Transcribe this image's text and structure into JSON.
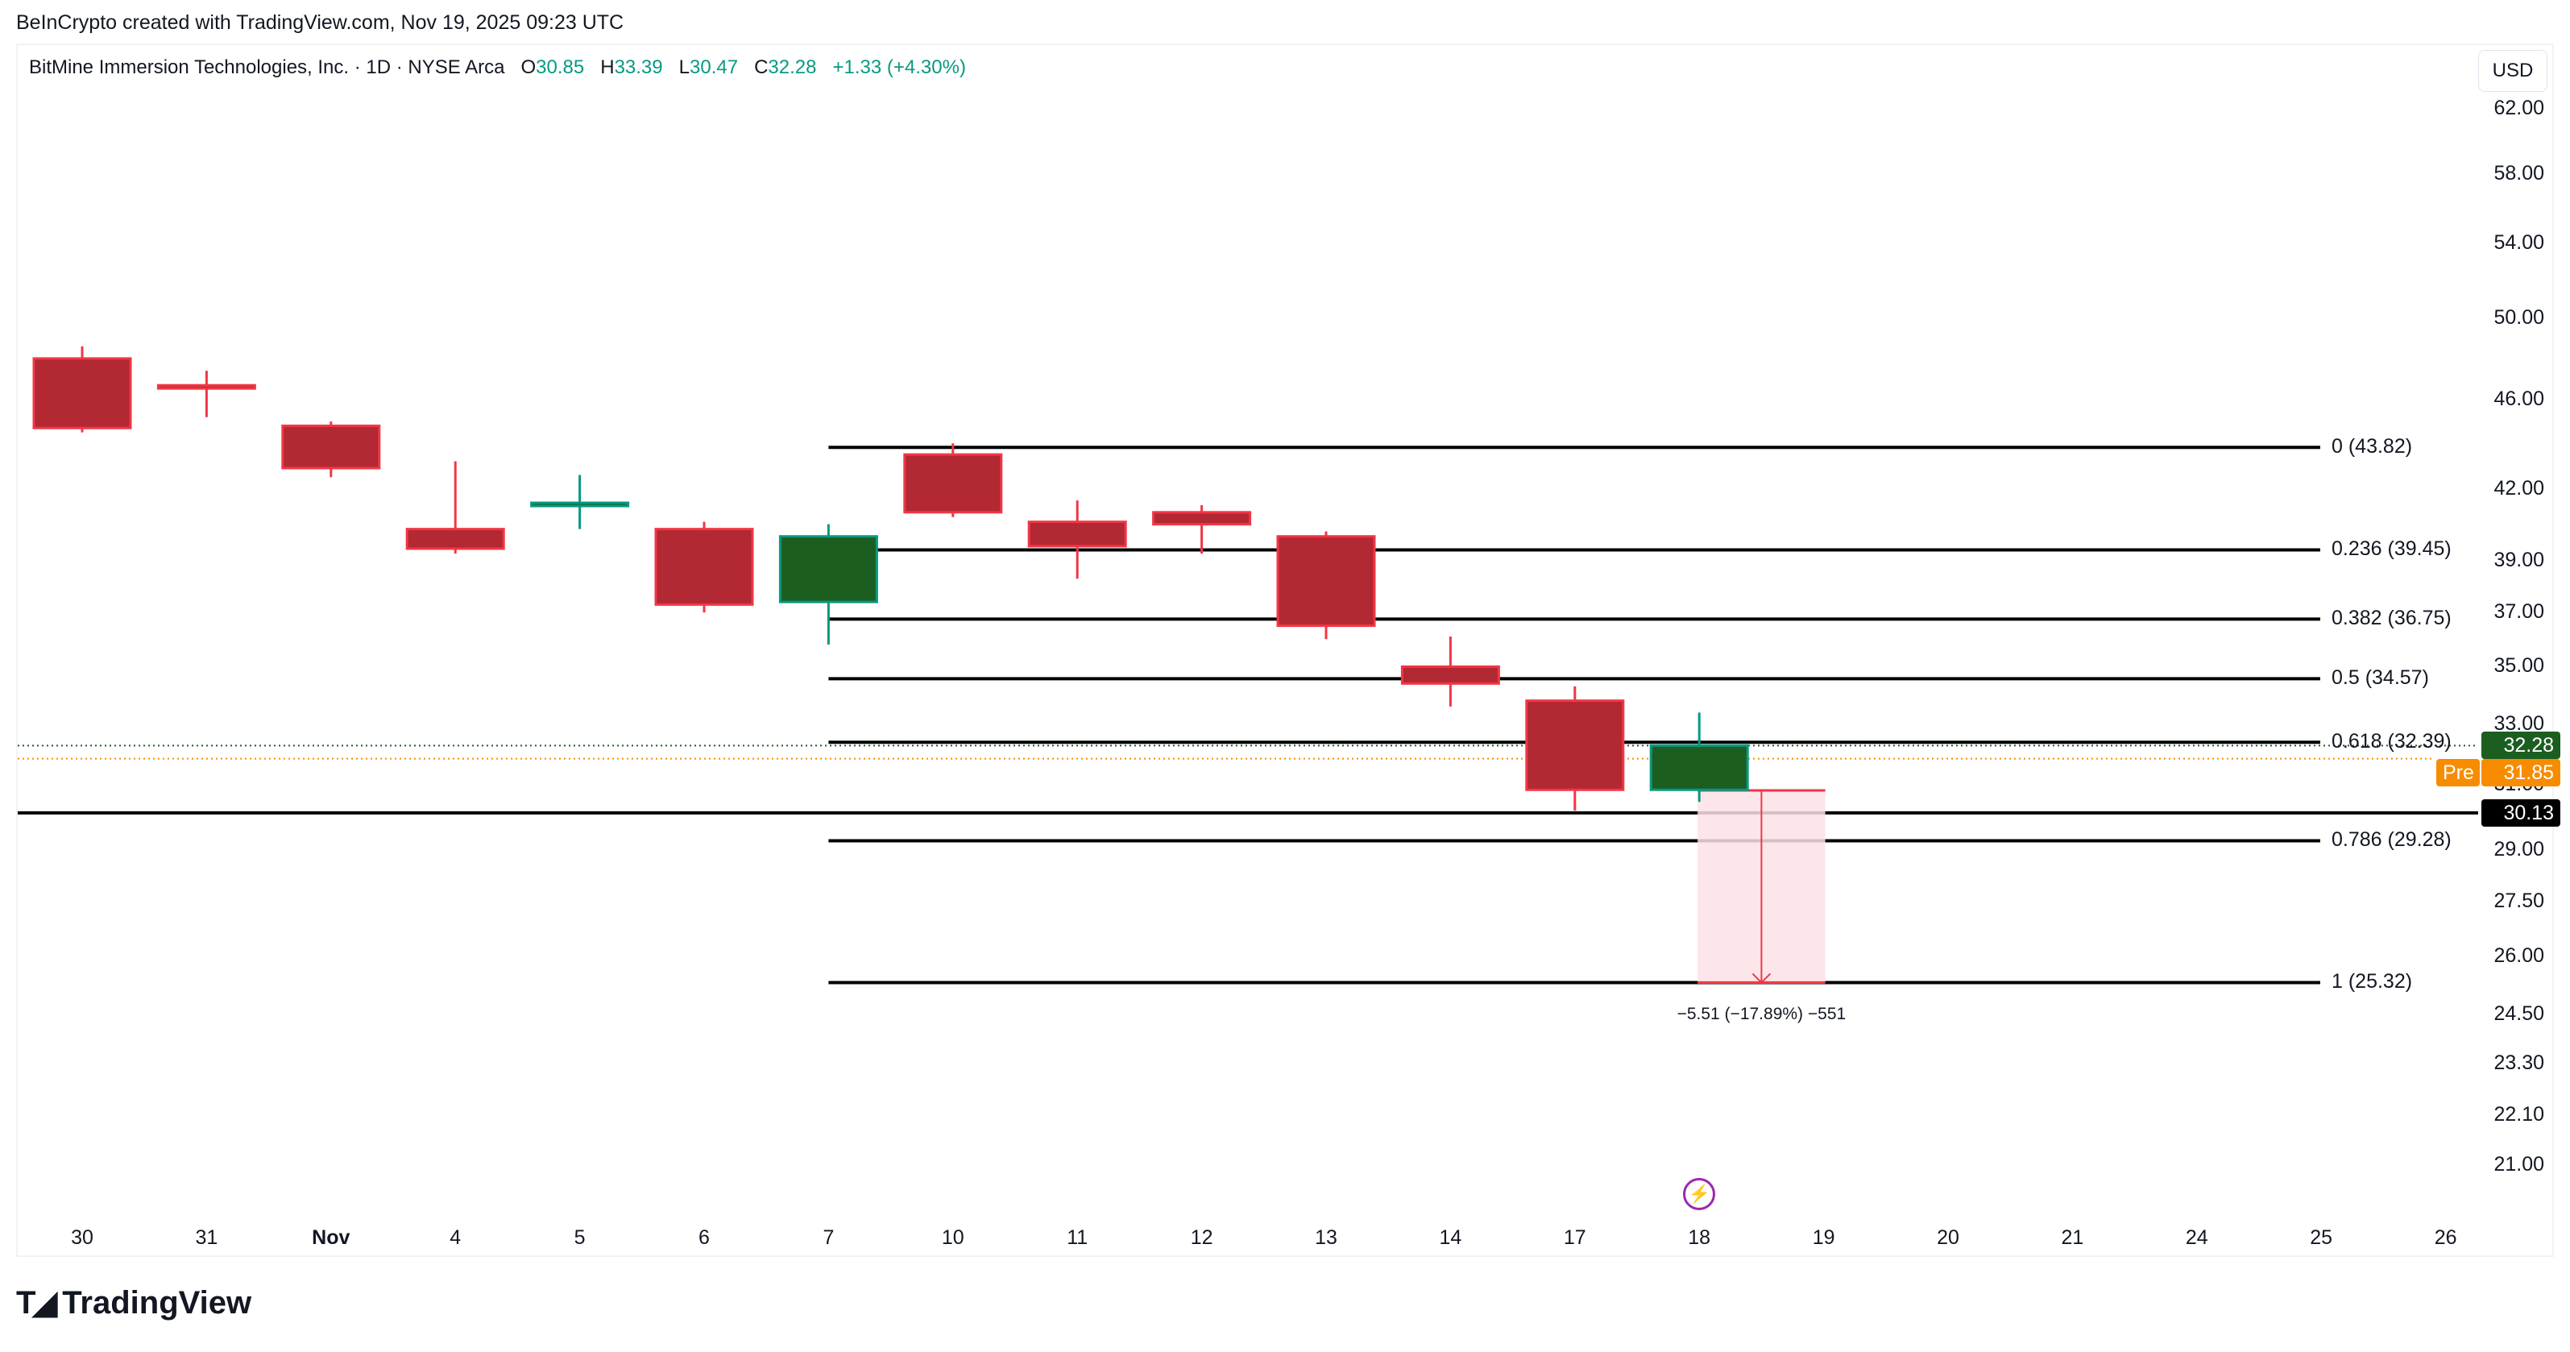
{
  "attribution": "BeInCrypto created with TradingView.com, Nov 19, 2025 09:23 UTC",
  "legend": {
    "symbol": "BitMine Immersion Technologies, Inc. · 1D · NYSE Arca",
    "o_label": "O",
    "o_value": "30.85",
    "h_label": "H",
    "h_value": "33.39",
    "l_label": "L",
    "l_value": "30.47",
    "c_label": "C",
    "c_value": "32.28",
    "change": "+1.33 (+4.30%)"
  },
  "currency": "USD",
  "colors": {
    "up_body": "#1b5e20",
    "up_border": "#089981",
    "down_body": "#b22833",
    "down_border": "#f23645",
    "fib_line": "#000000",
    "last_price": "#1b5e20",
    "premarket": "#f78c00",
    "hline": "#000000",
    "measure_fill": "#fde2e5",
    "measure_line": "#f23645",
    "event": "#9c27b0"
  },
  "price_axis": [
    "62.00",
    "58.00",
    "54.00",
    "50.00",
    "46.00",
    "42.00",
    "39.00",
    "37.00",
    "35.00",
    "33.00",
    "31.00",
    "29.00",
    "27.50",
    "26.00",
    "24.50",
    "23.30",
    "22.10",
    "21.00"
  ],
  "date_axis": [
    "30",
    "31",
    "Nov",
    "4",
    "5",
    "6",
    "7",
    "10",
    "11",
    "12",
    "13",
    "14",
    "17",
    "18",
    "19",
    "20",
    "21",
    "24",
    "25",
    "26"
  ],
  "fib_levels": [
    {
      "label": "0 (43.82)",
      "price": 43.82
    },
    {
      "label": "0.236 (39.45)",
      "price": 39.45
    },
    {
      "label": "0.382 (36.75)",
      "price": 36.75
    },
    {
      "label": "0.5 (34.57)",
      "price": 34.57
    },
    {
      "label": "0.618 (32.39)",
      "price": 32.39
    },
    {
      "label": "0.786 (29.28)",
      "price": 29.28
    },
    {
      "label": "1 (25.32)",
      "price": 25.32
    }
  ],
  "tags": {
    "last_price": "32.28",
    "premarket_label": "Pre",
    "premarket_price": "31.85",
    "hline_price": "30.13"
  },
  "measure": {
    "label": "−5.51 (−17.89%) −551"
  },
  "logo": {
    "text": "TradingView"
  },
  "chart_data": {
    "type": "candlestick",
    "title": "BitMine Immersion Technologies, Inc. · 1D · NYSE Arca",
    "xlabel": "",
    "ylabel": "USD",
    "y_scale": "log",
    "ylim": [
      20.5,
      64
    ],
    "categories": [
      "Oct 30",
      "Oct 31",
      "Nov 3",
      "Nov 4",
      "Nov 5",
      "Nov 6",
      "Nov 7",
      "Nov 10",
      "Nov 11",
      "Nov 12",
      "Nov 13",
      "Nov 14",
      "Nov 17",
      "Nov 18"
    ],
    "open": [
      48.0,
      46.7,
      44.8,
      40.3,
      41.3,
      40.3,
      37.4,
      43.5,
      40.6,
      41.0,
      40.0,
      35.0,
      33.8,
      30.85
    ],
    "high": [
      48.6,
      47.4,
      45.0,
      43.2,
      42.6,
      40.6,
      40.5,
      44.0,
      41.5,
      41.3,
      40.2,
      36.1,
      34.3,
      33.39
    ],
    "low": [
      44.5,
      45.2,
      42.5,
      39.3,
      40.3,
      37.0,
      35.8,
      40.8,
      38.3,
      39.3,
      36.0,
      33.6,
      30.2,
      30.47
    ],
    "close": [
      44.7,
      46.6,
      42.9,
      39.5,
      41.4,
      37.3,
      40.0,
      41.0,
      39.6,
      40.5,
      36.5,
      34.4,
      30.85,
      32.28
    ],
    "fibonacci": [
      {
        "ratio": 0,
        "price": 43.82
      },
      {
        "ratio": 0.236,
        "price": 39.45
      },
      {
        "ratio": 0.382,
        "price": 36.75
      },
      {
        "ratio": 0.5,
        "price": 34.57
      },
      {
        "ratio": 0.618,
        "price": 32.39
      },
      {
        "ratio": 0.786,
        "price": 29.28
      },
      {
        "ratio": 1,
        "price": 25.32
      }
    ],
    "horizontal_line": 30.13,
    "last_price": 32.28,
    "premarket_price": 31.85,
    "measurement": {
      "from": 30.83,
      "to": 25.32,
      "change": -5.51,
      "percent": -17.89,
      "ticks": -551
    },
    "grid": false,
    "legend_position": "top-left"
  }
}
